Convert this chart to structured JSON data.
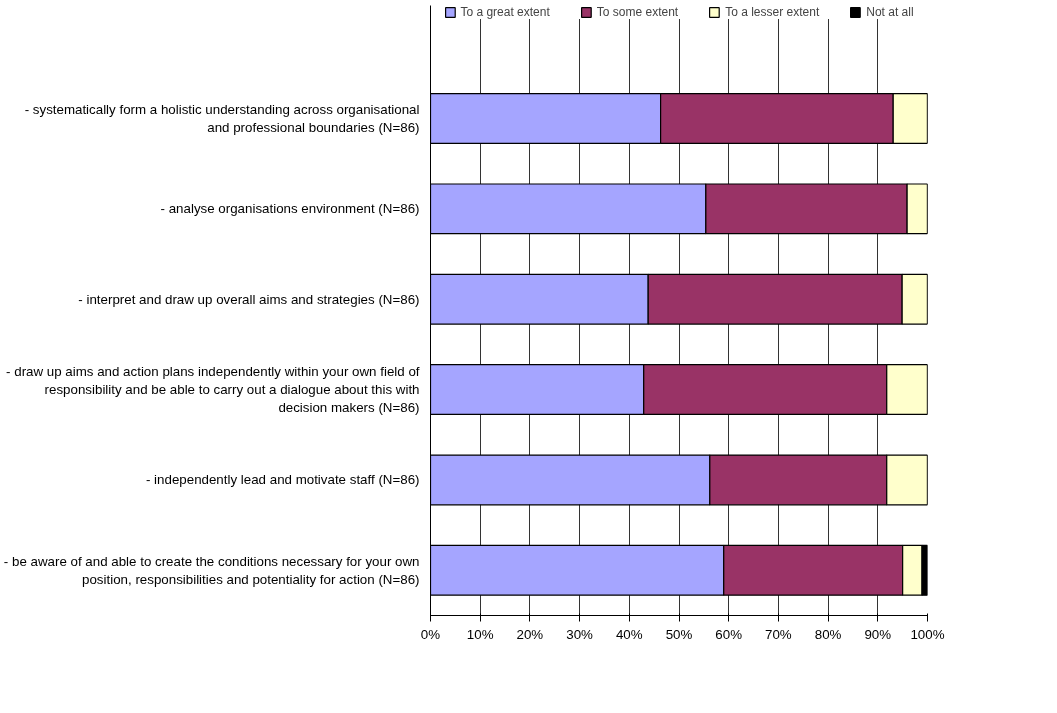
{
  "chart_data": {
    "type": "bar",
    "orientation": "horizontal",
    "stacked": true,
    "categories": [
      "- systematically form a holistic understanding across organisational and professional boundaries (N=86)",
      "- analyse organisations environment (N=86)",
      "- interpret and draw up overall aims and strategies (N=86)",
      "- draw up aims and action plans independently within your own field of responsibility and be able to carry out a dialogue about this with decision makers (N=86)",
      "- independently lead and motivate staff (N=86)",
      "- be aware of and able to create the conditions necessary for your own position, responsibilities and potentiality for action (N=86)"
    ],
    "series": [
      {
        "name": "To a great extent",
        "color": "#a5a5ff",
        "values": [
          46.3,
          55.4,
          43.8,
          42.9,
          56.2,
          59.0
        ]
      },
      {
        "name": "To some extent",
        "color": "#993366",
        "values": [
          46.8,
          40.5,
          51.1,
          48.9,
          35.6,
          36.0
        ]
      },
      {
        "name": "To a lesser extent",
        "color": "#ffffcc",
        "values": [
          6.9,
          4.1,
          5.1,
          8.2,
          8.2,
          3.9
        ]
      },
      {
        "name": "Not at all",
        "color": "#000000",
        "values": [
          0,
          0,
          0,
          0,
          0,
          1.1
        ]
      }
    ],
    "xlim": [
      0,
      100
    ],
    "xticks": [
      {
        "value": 0,
        "label": "0%"
      },
      {
        "value": 10,
        "label": "10%"
      },
      {
        "value": 20,
        "label": "20%"
      },
      {
        "value": 30,
        "label": "30%"
      },
      {
        "value": 40,
        "label": "40%"
      },
      {
        "value": 50,
        "label": "50%"
      },
      {
        "value": 60,
        "label": "60%"
      },
      {
        "value": 70,
        "label": "70%"
      },
      {
        "value": 80,
        "label": "80%"
      },
      {
        "value": 90,
        "label": "90%"
      },
      {
        "value": 100,
        "label": "100%"
      }
    ],
    "grid": "x",
    "legend": "top"
  }
}
